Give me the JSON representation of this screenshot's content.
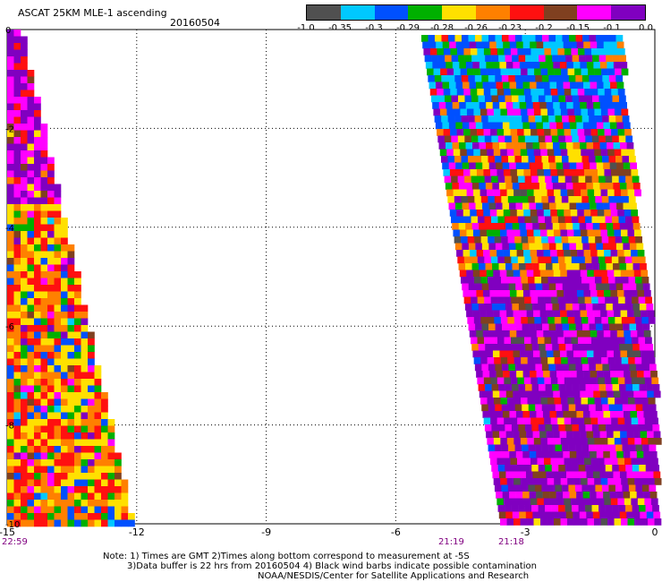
{
  "header": {
    "title": "ASCAT 25KM MLE-1 ascending",
    "date": "20160504"
  },
  "colorbar": {
    "colors": [
      "#505050",
      "#00c8ff",
      "#0050ff",
      "#00b000",
      "#ffe000",
      "#ff8000",
      "#ff1010",
      "#804020",
      "#ff00ff",
      "#8000c0"
    ],
    "labels": [
      "-1.0",
      "-0.35",
      "-0.3",
      "-0.29",
      "-0.28",
      "-0.26",
      "-0.23",
      "-0.2",
      "-0.15",
      "-0.1",
      "0.0"
    ]
  },
  "map": {
    "x_range": [
      -15,
      0
    ],
    "y_range": [
      0,
      -10
    ],
    "x_ticks": [
      "-15",
      "-12",
      "-9",
      "-6",
      "-3",
      "0"
    ],
    "y_ticks": [
      "0",
      "-2",
      "-4",
      "-6",
      "-8",
      "-10"
    ],
    "time_labels": [
      "22:59",
      "21:19",
      "21:18"
    ]
  },
  "notes": {
    "line1": "Note: 1) Times are GMT 2)Times along bottom correspond to measurement at -5S",
    "line2": "3)Data buffer is 22 hrs from 20160504 4) Black wind barbs indicate possible contamination",
    "line3": "NOAA/NESDIS/Center for Satellite Applications and Research"
  },
  "chart_data": {
    "type": "heatmap",
    "title": "ASCAT 25KM MLE-1 ascending",
    "xlim": [
      -15,
      0
    ],
    "ylim": [
      -10,
      0
    ],
    "x_ticks": [
      -15,
      -12,
      -9,
      -6,
      -3,
      0
    ],
    "y_ticks": [
      0,
      -2,
      -4,
      -6,
      -8,
      -10
    ],
    "value_bins": [
      -1.0,
      -0.35,
      -0.3,
      -0.29,
      -0.28,
      -0.26,
      -0.23,
      -0.2,
      -0.15,
      -0.1,
      0.0
    ],
    "grid": true,
    "swaths": [
      {
        "time": "22:59",
        "lon_west_edge": -15.0,
        "lon_east_at_top": -14.7,
        "lon_east_at_bottom": -12.5
      },
      {
        "time": "21:19",
        "lon_west_at_top": -5.6,
        "lon_west_at_bottom": -3.6,
        "lon_east_at_top": -1.0,
        "lon_east_at_bottom": 0.0
      },
      {
        "time": "21:18",
        "lon_west_at_bottom": -3.6,
        "lon_east_at_bottom": 0.0
      }
    ]
  }
}
